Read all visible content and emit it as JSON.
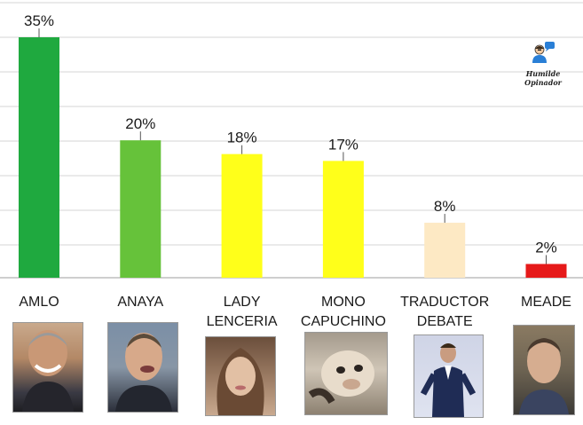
{
  "chart_data": {
    "type": "bar",
    "categories": [
      [
        "AMLO"
      ],
      [
        "ANAYA"
      ],
      [
        "LADY",
        "LENCERIA"
      ],
      [
        "MONO",
        "CAPUCHINO"
      ],
      [
        "TRADUCTOR",
        "DEBATE"
      ],
      [
        "MEADE"
      ]
    ],
    "values": [
      35,
      20,
      18,
      17,
      8,
      2
    ],
    "value_labels": [
      "35%",
      "20%",
      "18%",
      "17%",
      "8%",
      "2%"
    ],
    "bar_colors": [
      "#1fa93f",
      "#66c23a",
      "#ffff1a",
      "#ffff1a",
      "#fde9c4",
      "#e61a1a"
    ],
    "ylim": [
      0,
      35
    ],
    "grid": true,
    "title": "",
    "xlabel": "",
    "ylabel": ""
  },
  "brand": {
    "text": "Humilde Opinador",
    "icon": "person-with-speech-bubble-icon"
  },
  "photos": [
    {
      "subject": "AMLO",
      "icon": "portrait-photo"
    },
    {
      "subject": "ANAYA",
      "icon": "portrait-photo"
    },
    {
      "subject": "LADY LENCERIA",
      "icon": "portrait-photo"
    },
    {
      "subject": "MONO CAPUCHINO",
      "icon": "monkey-photo"
    },
    {
      "subject": "TRADUCTOR DEBATE",
      "icon": "portrait-photo"
    },
    {
      "subject": "MEADE",
      "icon": "portrait-photo"
    }
  ]
}
